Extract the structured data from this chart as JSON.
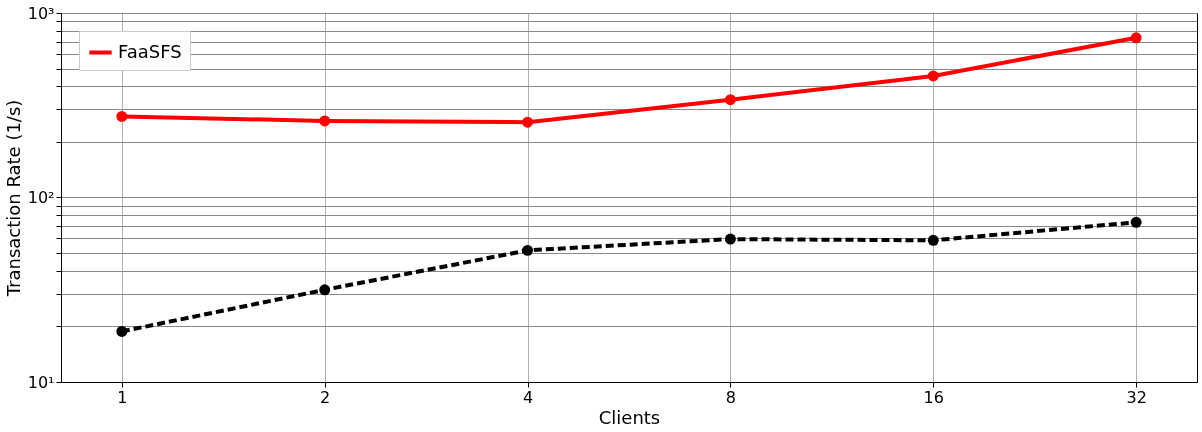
{
  "chart_data": {
    "type": "line",
    "xlabel": "Clients",
    "ylabel": "Transaction Rate (1/s)",
    "categories": [
      "1",
      "2",
      "4",
      "8",
      "16",
      "32"
    ],
    "series": [
      {
        "name": "FaaSFS",
        "color": "#ff0000",
        "values": [
          275,
          260,
          256,
          339,
          456,
          734
        ],
        "line_style": "solid"
      },
      {
        "color": "#000000",
        "values": [
          18.8,
          31.6,
          51.7,
          59.5,
          58.6,
          73.4
        ],
        "line_style": "dashed"
      }
    ],
    "log": "y",
    "ylim": [
      10,
      1000
    ],
    "yticks": [
      {
        "value": 10,
        "label": "10¹"
      },
      {
        "value": 20,
        "label": null
      },
      {
        "value": 30,
        "label": null
      },
      {
        "value": 40,
        "label": null
      },
      {
        "value": 50,
        "label": null
      },
      {
        "value": 60,
        "label": null
      },
      {
        "value": 70,
        "label": null
      },
      {
        "value": 80,
        "label": null
      },
      {
        "value": 90,
        "label": null
      },
      {
        "value": 100,
        "label": "10²"
      },
      {
        "value": 200,
        "label": null
      },
      {
        "value": 300,
        "label": null
      },
      {
        "value": 400,
        "label": null
      },
      {
        "value": 500,
        "label": null
      },
      {
        "value": 600,
        "label": null
      },
      {
        "value": 700,
        "label": null
      },
      {
        "value": 800,
        "label": null
      },
      {
        "value": 900,
        "label": null
      },
      {
        "value": 1000,
        "label": "10³"
      }
    ],
    "grid": true,
    "legend": "top left",
    "marker": "circle"
  }
}
